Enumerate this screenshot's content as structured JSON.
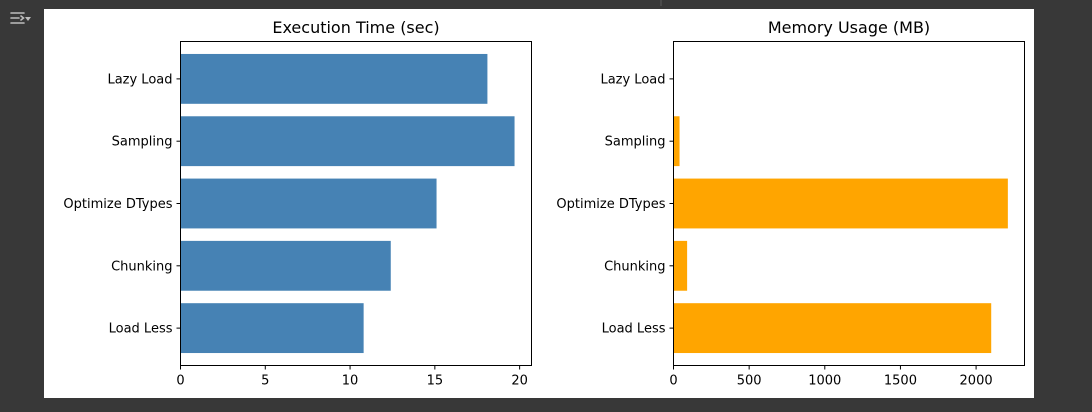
{
  "toolbar": {
    "icon": "output-menu-icon"
  },
  "charts": [
    {
      "type": "bar",
      "orientation": "horizontal",
      "title": "Execution Time (sec)",
      "categories": [
        "Lazy Load",
        "Sampling",
        "Optimize DTypes",
        "Chunking",
        "Load Less"
      ],
      "values": [
        18.1,
        19.7,
        15.1,
        12.4,
        10.8
      ],
      "xlim": [
        0,
        20.7
      ],
      "xticks": [
        0,
        5,
        10,
        15,
        20
      ],
      "xtick_labels": [
        "0",
        "5",
        "10",
        "15",
        "20"
      ],
      "color": "#4682b4",
      "grid": false
    },
    {
      "type": "bar",
      "orientation": "horizontal",
      "title": "Memory Usage (MB)",
      "categories": [
        "Lazy Load",
        "Sampling",
        "Optimize DTypes",
        "Chunking",
        "Load Less"
      ],
      "values": [
        0,
        40,
        2210,
        90,
        2100
      ],
      "xlim": [
        0,
        2320
      ],
      "xticks": [
        0,
        500,
        1000,
        1500,
        2000
      ],
      "xtick_labels": [
        "0",
        "500",
        "1000",
        "1500",
        "2000"
      ],
      "color": "#ffa500",
      "grid": false
    }
  ]
}
